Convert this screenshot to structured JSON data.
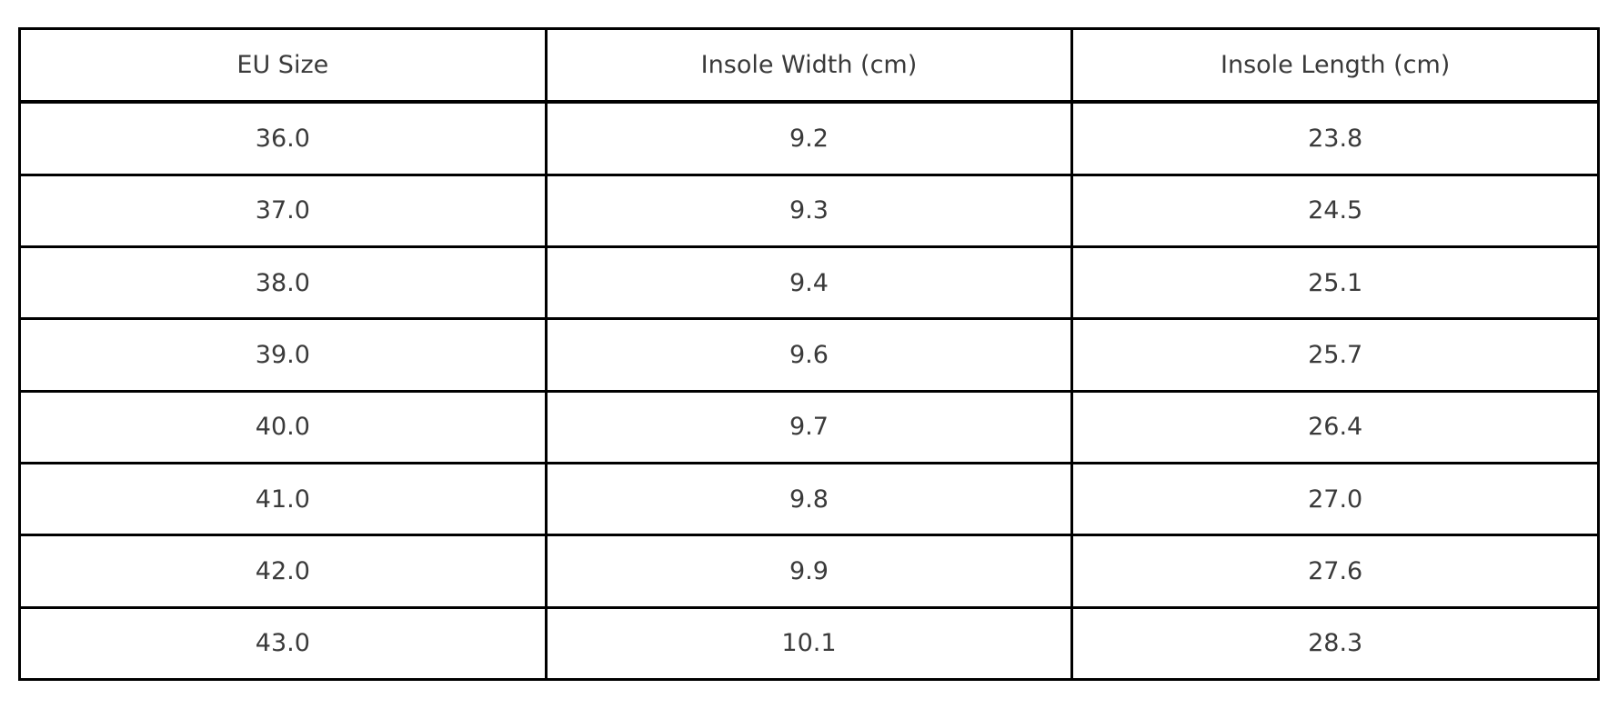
{
  "chart_data": {
    "type": "table",
    "title": "",
    "columns": [
      "EU Size",
      "Insole Width (cm)",
      "Insole Length (cm)"
    ],
    "rows": [
      [
        "36.0",
        "9.2",
        "23.8"
      ],
      [
        "37.0",
        "9.3",
        "24.5"
      ],
      [
        "38.0",
        "9.4",
        "25.1"
      ],
      [
        "39.0",
        "9.6",
        "25.7"
      ],
      [
        "40.0",
        "9.7",
        "26.4"
      ],
      [
        "41.0",
        "9.8",
        "27.0"
      ],
      [
        "42.0",
        "9.9",
        "27.6"
      ],
      [
        "43.0",
        "10.1",
        "28.3"
      ]
    ],
    "colors": {
      "border": "#000000",
      "text": "#3a3a3a",
      "background": "#ffffff"
    }
  }
}
